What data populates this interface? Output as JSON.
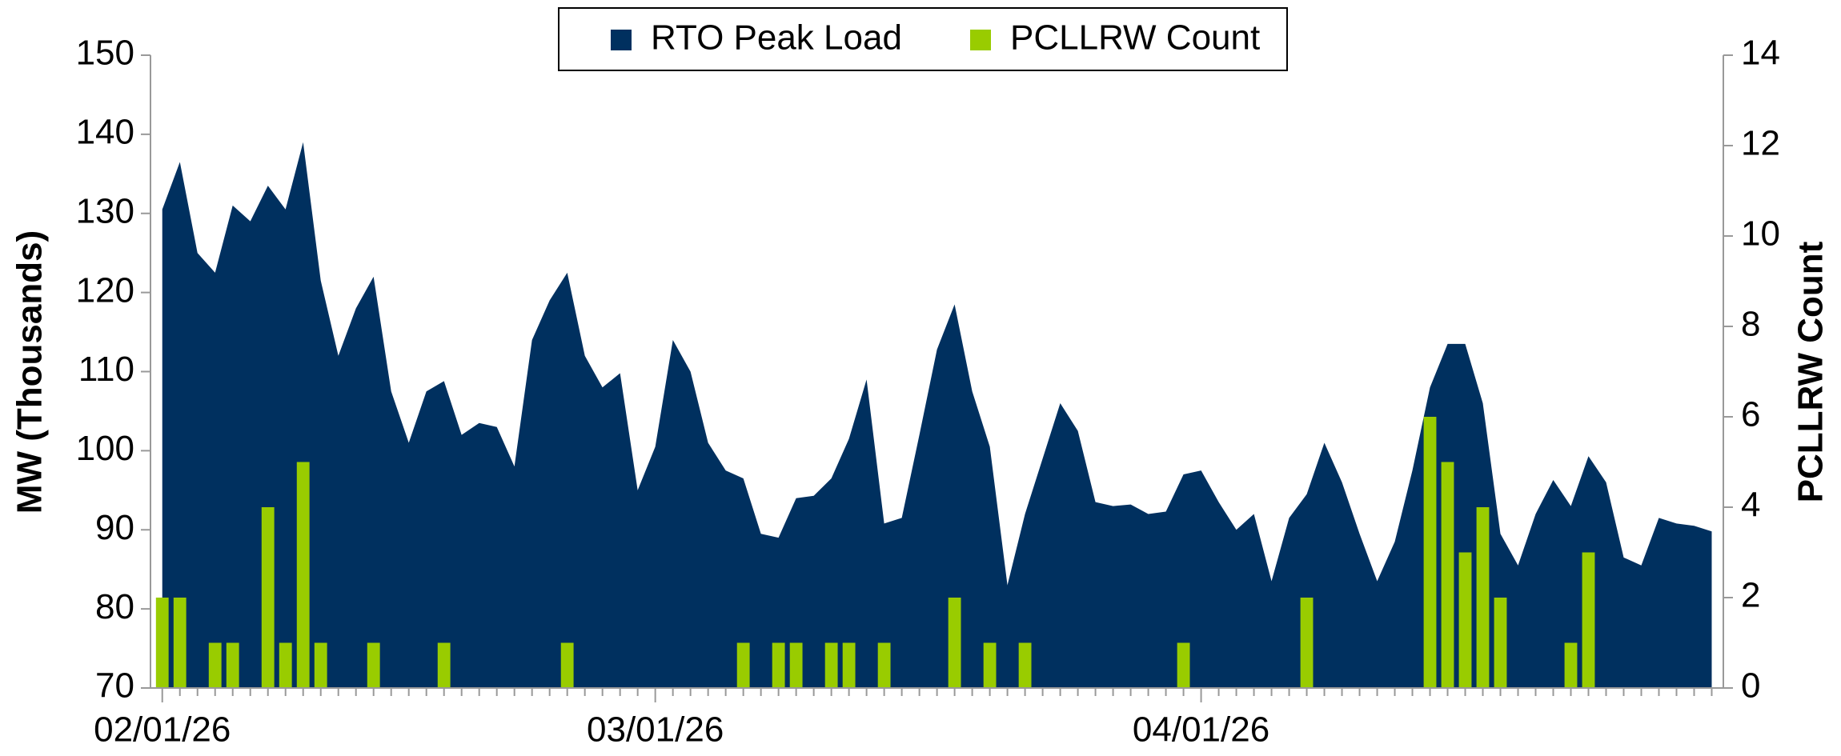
{
  "chart_data": {
    "type": "area_bar",
    "categories": [
      "02/01/26",
      null,
      null,
      null,
      null,
      null,
      null,
      null,
      null,
      null,
      null,
      null,
      null,
      null,
      null,
      null,
      null,
      null,
      null,
      null,
      null,
      null,
      null,
      null,
      null,
      null,
      null,
      null,
      "03/01/26",
      null,
      null,
      null,
      null,
      null,
      null,
      null,
      null,
      null,
      null,
      null,
      null,
      null,
      null,
      null,
      null,
      null,
      null,
      null,
      null,
      null,
      null,
      null,
      null,
      null,
      null,
      null,
      null,
      null,
      null,
      "04/01/26",
      null,
      null,
      null,
      null,
      null,
      null,
      null,
      null,
      null,
      null,
      null,
      null,
      null,
      null,
      null,
      null,
      null,
      null,
      null,
      null,
      null,
      null,
      null,
      null,
      null,
      null,
      null,
      null,
      null
    ],
    "series": [
      {
        "name": "RTO Peak Load",
        "color": "#00305f",
        "values": [
          130.5,
          136.5,
          125,
          122.5,
          131,
          129,
          133.5,
          130.5,
          139,
          121.5,
          112,
          118,
          122,
          107.5,
          101,
          107.5,
          108.8,
          102,
          103.5,
          103,
          98,
          114,
          119,
          122.5,
          112,
          108,
          109.8,
          95,
          100.5,
          114,
          110,
          101,
          97.5,
          96.5,
          89.5,
          89,
          94,
          94.3,
          96.5,
          101.5,
          109,
          90.8,
          91.5,
          102,
          112.8,
          118.5,
          107.5,
          100.5,
          83,
          92,
          99,
          106,
          102.5,
          93.5,
          93,
          93.2,
          92,
          92.3,
          97,
          97.5,
          93.5,
          90,
          92,
          83.5,
          91.5,
          94.5,
          101,
          96,
          89.5,
          83.5,
          88.5,
          97.5,
          108,
          113.5,
          113.5,
          106,
          89.5,
          85.5,
          92,
          96.3,
          93,
          99.3,
          96,
          86.5,
          85.5,
          91.5,
          90.8,
          90.5,
          89.8
        ]
      },
      {
        "name": "PCLLRW Count",
        "color": "#99cc00",
        "axis": "y2",
        "values": [
          2,
          2,
          0,
          1,
          1,
          0,
          4,
          1,
          5,
          1,
          0,
          0,
          1,
          0,
          0,
          0,
          1,
          0,
          0,
          0,
          0,
          0,
          0,
          1,
          0,
          0,
          0,
          0,
          0,
          0,
          0,
          0,
          0,
          1,
          0,
          1,
          1,
          0,
          1,
          1,
          0,
          1,
          0,
          0,
          0,
          2,
          0,
          1,
          0,
          1,
          0,
          0,
          0,
          0,
          0,
          0,
          0,
          0,
          1,
          0,
          0,
          0,
          0,
          0,
          0,
          2,
          0,
          0,
          0,
          0,
          0,
          0,
          6,
          5,
          3,
          4,
          2,
          0,
          0,
          0,
          1,
          3,
          0,
          0,
          0,
          0,
          0,
          0,
          0
        ]
      }
    ],
    "y_label": "MW (Thousands)",
    "y2_label": "PCLLRW Count",
    "ylim": [
      70,
      150
    ],
    "yticks": [
      70,
      80,
      90,
      100,
      110,
      120,
      130,
      140,
      150
    ],
    "y2lim": [
      0,
      14
    ],
    "y2ticks": [
      0,
      2,
      4,
      6,
      8,
      10,
      12,
      14
    ],
    "legend": "top"
  }
}
